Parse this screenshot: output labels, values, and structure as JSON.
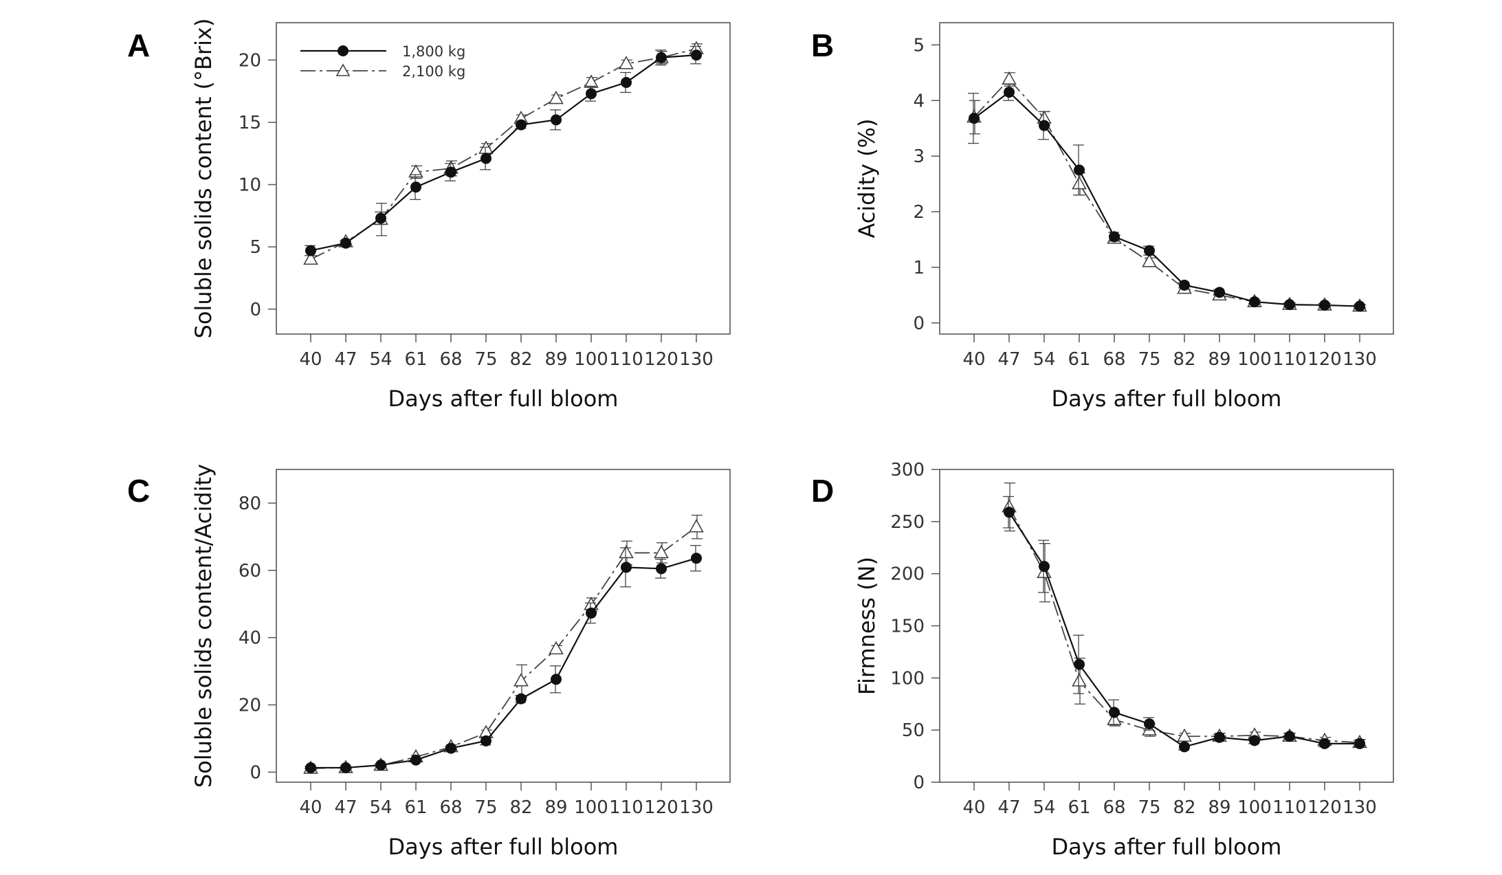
{
  "legend": {
    "series_a": "1,800 kg",
    "series_b": "2,100 kg"
  },
  "chart_data": [
    {
      "panel": "A",
      "type": "line",
      "xlabel": "Days after full bloom",
      "ylabel": "Soluble solids content (°Brix)",
      "categories": [
        "40",
        "47",
        "54",
        "61",
        "68",
        "75",
        "82",
        "89",
        "100",
        "110",
        "120",
        "130"
      ],
      "ylim": [
        -2,
        23
      ],
      "yticks": [
        0,
        5,
        10,
        15,
        20
      ],
      "legend_position": "top-left",
      "series": [
        {
          "name": "1,800 kg",
          "marker": "filled-circle",
          "line": "solid",
          "values": [
            4.7,
            5.3,
            7.3,
            9.8,
            11.0,
            12.1,
            14.8,
            15.2,
            17.3,
            18.2,
            20.2,
            20.4
          ],
          "errors": [
            0.4,
            0.2,
            0.5,
            1.0,
            0.7,
            0.9,
            0.3,
            0.8,
            0.6,
            0.8,
            0.6,
            0.7
          ]
        },
        {
          "name": "2,100 kg",
          "marker": "open-triangle",
          "line": "dash-dot",
          "values": [
            4.0,
            5.4,
            7.2,
            11.0,
            11.3,
            12.9,
            15.3,
            16.9,
            18.2,
            19.7,
            20.2,
            20.9
          ],
          "errors": [
            0.3,
            0.2,
            1.3,
            0.5,
            0.6,
            0.4,
            0.3,
            0.3,
            0.4,
            0.3,
            0.5,
            0.4
          ]
        }
      ]
    },
    {
      "panel": "B",
      "type": "line",
      "xlabel": "Days after full bloom",
      "ylabel": "Acidity (%)",
      "categories": [
        "40",
        "47",
        "54",
        "61",
        "68",
        "75",
        "82",
        "89",
        "100",
        "110",
        "120",
        "130"
      ],
      "ylim": [
        -0.2,
        5.4
      ],
      "yticks": [
        0,
        1,
        2,
        3,
        4,
        5
      ],
      "series": [
        {
          "name": "1,800 kg",
          "marker": "filled-circle",
          "line": "solid",
          "values": [
            3.68,
            4.15,
            3.55,
            2.75,
            1.55,
            1.3,
            0.68,
            0.55,
            0.38,
            0.33,
            0.32,
            0.3
          ],
          "errors": [
            0.45,
            0.15,
            0.25,
            0.45,
            0.08,
            0.08,
            0.05,
            0.05,
            0.03,
            0.03,
            0.03,
            0.03
          ]
        },
        {
          "name": "2,100 kg",
          "marker": "open-triangle",
          "line": "dash-dot",
          "values": [
            3.7,
            4.38,
            3.68,
            2.5,
            1.52,
            1.1,
            0.62,
            0.5,
            0.38,
            0.33,
            0.32,
            0.3
          ],
          "errors": [
            0.3,
            0.12,
            0.12,
            0.2,
            0.06,
            0.07,
            0.05,
            0.04,
            0.03,
            0.03,
            0.03,
            0.03
          ]
        }
      ]
    },
    {
      "panel": "C",
      "type": "line",
      "xlabel": "Days after full bloom",
      "ylabel": "Soluble solids content/Acidity",
      "categories": [
        "40",
        "47",
        "54",
        "61",
        "68",
        "75",
        "82",
        "89",
        "100",
        "110",
        "120",
        "130"
      ],
      "ylim": [
        -3,
        90
      ],
      "yticks": [
        0,
        20,
        40,
        60,
        80
      ],
      "series": [
        {
          "name": "1,800 kg",
          "marker": "filled-circle",
          "line": "solid",
          "values": [
            1.3,
            1.3,
            2.1,
            3.6,
            7.1,
            9.3,
            21.8,
            27.6,
            47.3,
            60.9,
            60.5,
            63.6
          ],
          "errors": [
            0.3,
            0.2,
            0.3,
            0.5,
            0.6,
            1.2,
            1.0,
            4.0,
            3.0,
            5.8,
            2.8,
            3.8
          ]
        },
        {
          "name": "2,100 kg",
          "marker": "open-triangle",
          "line": "dash-dot",
          "values": [
            1.1,
            1.3,
            2.0,
            4.5,
            7.5,
            11.7,
            27.1,
            36.6,
            49.8,
            65.2,
            65.2,
            72.9
          ],
          "errors": [
            0.3,
            0.2,
            0.3,
            0.5,
            0.6,
            0.8,
            4.8,
            1.0,
            2.0,
            3.5,
            3.0,
            3.5
          ]
        }
      ]
    },
    {
      "panel": "D",
      "type": "line",
      "xlabel": "Days after full bloom",
      "ylabel": "Firmness (N)",
      "categories": [
        "40",
        "47",
        "54",
        "61",
        "68",
        "75",
        "82",
        "89",
        "100",
        "110",
        "120",
        "130"
      ],
      "ylim": [
        0,
        300
      ],
      "yticks": [
        0,
        50,
        100,
        150,
        200,
        250,
        300
      ],
      "series": [
        {
          "name": "1,800 kg",
          "marker": "filled-circle",
          "line": "solid",
          "values": [
            null,
            259,
            207,
            113,
            67,
            56,
            34,
            43,
            40,
            44,
            37,
            37
          ],
          "errors": [
            null,
            15,
            25,
            28,
            12,
            6,
            3,
            3,
            3,
            3,
            3,
            3
          ]
        },
        {
          "name": "2,100 kg",
          "marker": "open-triangle",
          "line": "dash-dot",
          "values": [
            null,
            264,
            201,
            97,
            60,
            50,
            44,
            44,
            45,
            44,
            40,
            38
          ],
          "errors": [
            null,
            23,
            28,
            22,
            6,
            6,
            3,
            3,
            3,
            3,
            3,
            3
          ]
        }
      ]
    }
  ]
}
